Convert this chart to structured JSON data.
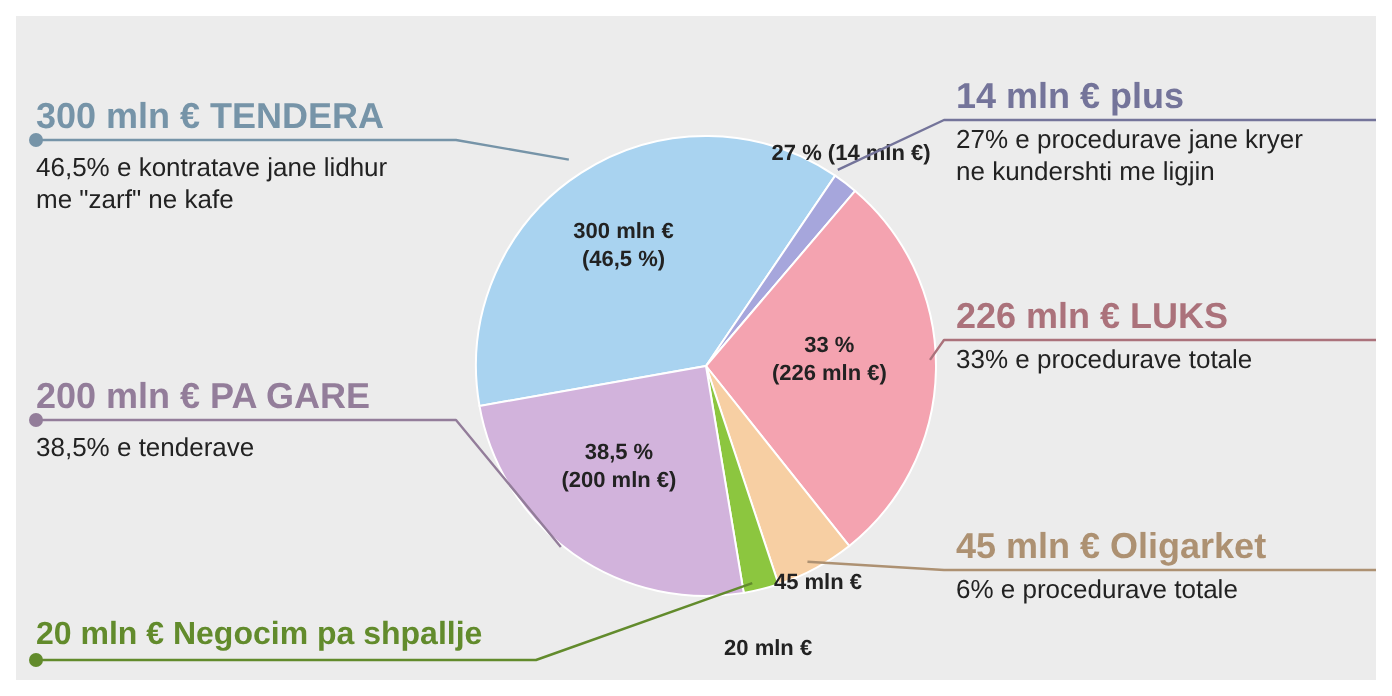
{
  "chart_data": {
    "type": "pie",
    "categories": [
      "300 mln € TENDERA",
      "14 mln € plus",
      "226 mln € LUKS",
      "45 mln € Oligarket",
      "20 mln € Negocim pa shpallje",
      "200 mln € PA GARE"
    ],
    "values": [
      300,
      14,
      226,
      45,
      20,
      200
    ],
    "colors": [
      "#a9d3f0",
      "#a6a6dc",
      "#f4a3b0",
      "#f7cfa3",
      "#8cc63f",
      "#d2b3dc"
    ],
    "value_labels": [
      "300 mln € (46,5 %)",
      "27 % (14 mln €)",
      "33 % (226 mln €)",
      "45 mln €",
      "20 mln €",
      "38,5 % (200 mln €)"
    ],
    "annotations": [
      "46,5% e kontratave jane lidhur me \"zarf\" ne kafe",
      "27% e procedurave jane kryer ne kundershti me ligjin",
      "33% e procedurave totale",
      "6% e procedurave totale",
      "38,5% e tenderave"
    ],
    "legend": false
  }
}
